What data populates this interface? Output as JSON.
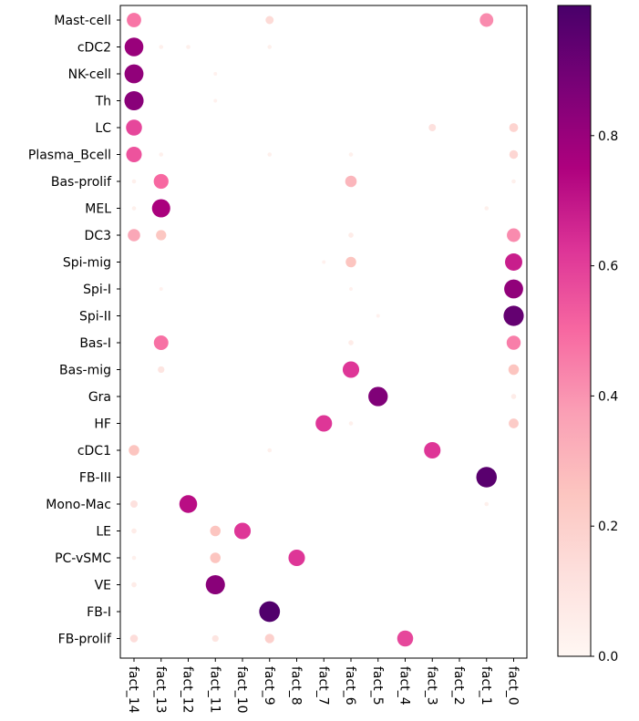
{
  "chart_data": {
    "type": "scatter",
    "subtype": "dot-plot",
    "title": "",
    "xlabel": "",
    "ylabel": "",
    "x_categories": [
      "fact_14",
      "fact_13",
      "fact_12",
      "fact_11",
      "fact_10",
      "fact_9",
      "fact_8",
      "fact_7",
      "fact_6",
      "fact_5",
      "fact_4",
      "fact_3",
      "fact_2",
      "fact_1",
      "fact_0"
    ],
    "y_categories": [
      "Mast-cell",
      "cDC2",
      "NK-cell",
      "Th",
      "LC",
      "Plasma_Bcell",
      "Bas-prolif",
      "MEL",
      "DC3",
      "Spi-mig",
      "Spi-I",
      "Spi-II",
      "Bas-I",
      "Bas-mig",
      "Gra",
      "HF",
      "cDC1",
      "FB-III",
      "Mono-Mac",
      "LE",
      "PC-vSMC",
      "VE",
      "FB-I",
      "FB-prolif"
    ],
    "value_encoding": "dot size and color both encode value",
    "colormap": "RdPu",
    "colorbar": {
      "range": [
        0.0,
        1.0
      ],
      "ticks": [
        "0.0",
        "0.2",
        "0.4",
        "0.6",
        "0.8"
      ],
      "colors": [
        "#fff7f3",
        "#fde0dd",
        "#fcc5c0",
        "#fa9fb5",
        "#f768a1",
        "#dd3497",
        "#ae017e",
        "#7a0177",
        "#49006a"
      ]
    },
    "points": [
      {
        "y": "Mast-cell",
        "x": "fact_14",
        "value": 0.47
      },
      {
        "y": "Mast-cell",
        "x": "fact_9",
        "value": 0.15
      },
      {
        "y": "Mast-cell",
        "x": "fact_1",
        "value": 0.42
      },
      {
        "y": "cDC2",
        "x": "fact_14",
        "value": 0.8
      },
      {
        "y": "cDC2",
        "x": "fact_13",
        "value": 0.04
      },
      {
        "y": "cDC2",
        "x": "fact_12",
        "value": 0.04
      },
      {
        "y": "cDC2",
        "x": "fact_9",
        "value": 0.04
      },
      {
        "y": "NK-cell",
        "x": "fact_14",
        "value": 0.82
      },
      {
        "y": "NK-cell",
        "x": "fact_11",
        "value": 0.03
      },
      {
        "y": "Th",
        "x": "fact_14",
        "value": 0.84
      },
      {
        "y": "Th",
        "x": "fact_11",
        "value": 0.03
      },
      {
        "y": "LC",
        "x": "fact_14",
        "value": 0.58
      },
      {
        "y": "LC",
        "x": "fact_3",
        "value": 0.12
      },
      {
        "y": "LC",
        "x": "fact_0",
        "value": 0.18
      },
      {
        "y": "Plasma_Bcell",
        "x": "fact_14",
        "value": 0.55
      },
      {
        "y": "Plasma_Bcell",
        "x": "fact_13",
        "value": 0.04
      },
      {
        "y": "Plasma_Bcell",
        "x": "fact_9",
        "value": 0.04
      },
      {
        "y": "Plasma_Bcell",
        "x": "fact_6",
        "value": 0.04
      },
      {
        "y": "Plasma_Bcell",
        "x": "fact_0",
        "value": 0.17
      },
      {
        "y": "Bas-prolif",
        "x": "fact_14",
        "value": 0.04
      },
      {
        "y": "Bas-prolif",
        "x": "fact_13",
        "value": 0.5
      },
      {
        "y": "Bas-prolif",
        "x": "fact_6",
        "value": 0.3
      },
      {
        "y": "Bas-prolif",
        "x": "fact_0",
        "value": 0.04
      },
      {
        "y": "MEL",
        "x": "fact_14",
        "value": 0.04
      },
      {
        "y": "MEL",
        "x": "fact_13",
        "value": 0.76
      },
      {
        "y": "MEL",
        "x": "fact_1",
        "value": 0.04
      },
      {
        "y": "DC3",
        "x": "fact_14",
        "value": 0.35
      },
      {
        "y": "DC3",
        "x": "fact_13",
        "value": 0.24
      },
      {
        "y": "DC3",
        "x": "fact_6",
        "value": 0.06
      },
      {
        "y": "DC3",
        "x": "fact_0",
        "value": 0.42
      },
      {
        "y": "Spi-mig",
        "x": "fact_7",
        "value": 0.03
      },
      {
        "y": "Spi-mig",
        "x": "fact_6",
        "value": 0.25
      },
      {
        "y": "Spi-mig",
        "x": "fact_0",
        "value": 0.68
      },
      {
        "y": "Spi-I",
        "x": "fact_13",
        "value": 0.03
      },
      {
        "y": "Spi-I",
        "x": "fact_6",
        "value": 0.03
      },
      {
        "y": "Spi-I",
        "x": "fact_0",
        "value": 0.82
      },
      {
        "y": "Spi-II",
        "x": "fact_5",
        "value": 0.03
      },
      {
        "y": "Spi-II",
        "x": "fact_0",
        "value": 0.93
      },
      {
        "y": "Bas-I",
        "x": "fact_13",
        "value": 0.48
      },
      {
        "y": "Bas-I",
        "x": "fact_6",
        "value": 0.06
      },
      {
        "y": "Bas-I",
        "x": "fact_0",
        "value": 0.45
      },
      {
        "y": "Bas-mig",
        "x": "fact_13",
        "value": 0.1
      },
      {
        "y": "Bas-mig",
        "x": "fact_6",
        "value": 0.62
      },
      {
        "y": "Bas-mig",
        "x": "fact_0",
        "value": 0.25
      },
      {
        "y": "Gra",
        "x": "fact_5",
        "value": 0.86
      },
      {
        "y": "Gra",
        "x": "fact_0",
        "value": 0.06
      },
      {
        "y": "HF",
        "x": "fact_7",
        "value": 0.62
      },
      {
        "y": "HF",
        "x": "fact_6",
        "value": 0.04
      },
      {
        "y": "HF",
        "x": "fact_0",
        "value": 0.22
      },
      {
        "y": "cDC1",
        "x": "fact_14",
        "value": 0.25
      },
      {
        "y": "cDC1",
        "x": "fact_9",
        "value": 0.04
      },
      {
        "y": "cDC1",
        "x": "fact_3",
        "value": 0.62
      },
      {
        "y": "FB-III",
        "x": "fact_1",
        "value": 0.96
      },
      {
        "y": "Mono-Mac",
        "x": "fact_14",
        "value": 0.12
      },
      {
        "y": "Mono-Mac",
        "x": "fact_12",
        "value": 0.72
      },
      {
        "y": "Mono-Mac",
        "x": "fact_1",
        "value": 0.04
      },
      {
        "y": "LE",
        "x": "fact_14",
        "value": 0.06
      },
      {
        "y": "LE",
        "x": "fact_11",
        "value": 0.25
      },
      {
        "y": "LE",
        "x": "fact_10",
        "value": 0.62
      },
      {
        "y": "PC-vSMC",
        "x": "fact_14",
        "value": 0.04
      },
      {
        "y": "PC-vSMC",
        "x": "fact_11",
        "value": 0.25
      },
      {
        "y": "PC-vSMC",
        "x": "fact_8",
        "value": 0.62
      },
      {
        "y": "VE",
        "x": "fact_14",
        "value": 0.06
      },
      {
        "y": "VE",
        "x": "fact_11",
        "value": 0.84
      },
      {
        "y": "FB-I",
        "x": "fact_9",
        "value": 0.98
      },
      {
        "y": "FB-prolif",
        "x": "fact_14",
        "value": 0.14
      },
      {
        "y": "FB-prolif",
        "x": "fact_11",
        "value": 0.1
      },
      {
        "y": "FB-prolif",
        "x": "fact_9",
        "value": 0.2
      },
      {
        "y": "FB-prolif",
        "x": "fact_4",
        "value": 0.58
      }
    ]
  }
}
